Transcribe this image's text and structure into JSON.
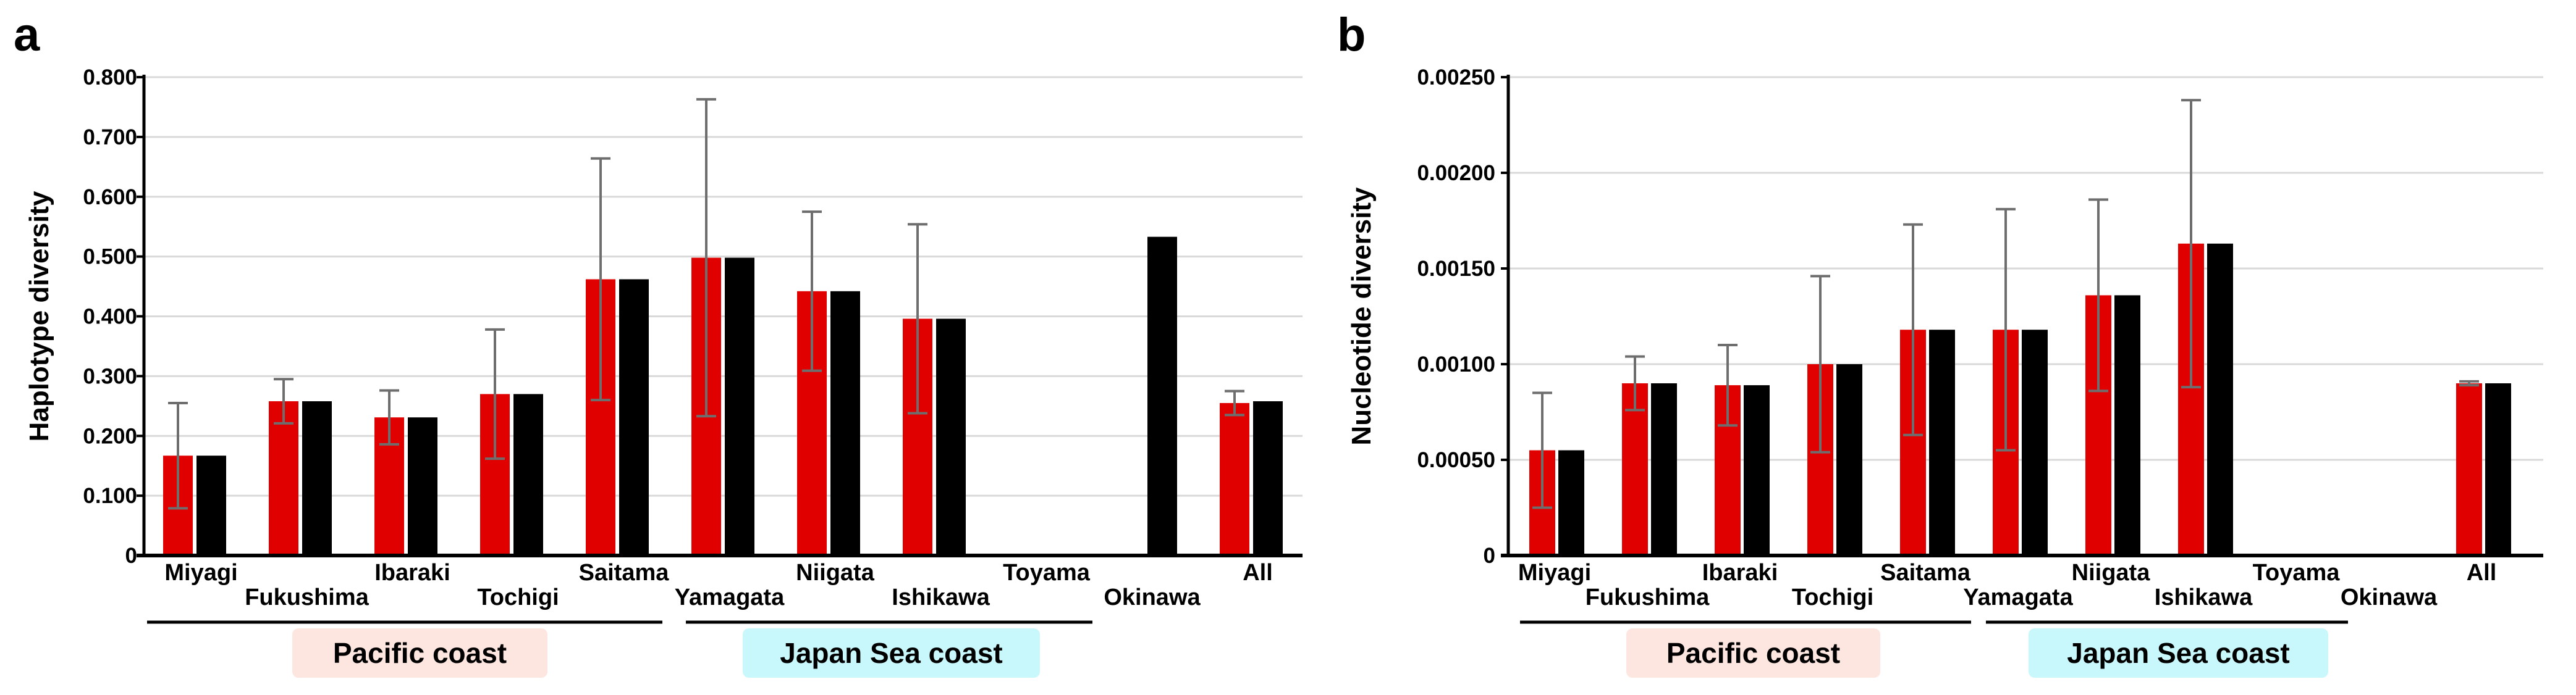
{
  "colors": {
    "red": "#e00000",
    "black": "#000000",
    "grid": "#d9d9d9",
    "error_bar": "#6e6e6e",
    "pacific_bg": "#fde6df",
    "japan_sea_bg": "#c8f8fb"
  },
  "chart_data": [
    {
      "type": "bar",
      "panel": "a",
      "title": "",
      "xlabel": "",
      "ylabel": "Haplotype diversity",
      "ylim": [
        0,
        0.8
      ],
      "y_ticks": [
        0,
        0.1,
        0.2,
        0.3,
        0.4,
        0.5,
        0.6,
        0.7,
        0.8
      ],
      "y_tick_labels": [
        "0",
        "0.100",
        "0.200",
        "0.300",
        "0.400",
        "0.500",
        "0.600",
        "0.700",
        "0.800"
      ],
      "grid": true,
      "categories": [
        "Miyagi",
        "Fukushima",
        "Ibaraki",
        "Tochigi",
        "Saitama",
        "Yamagata",
        "Niigata",
        "Ishikawa",
        "Toyama",
        "Okinawa",
        "All"
      ],
      "series": [
        {
          "name": "red",
          "values": [
            0.167,
            0.258,
            0.231,
            0.27,
            0.462,
            0.498,
            0.442,
            0.396,
            null,
            null,
            0.255
          ],
          "error": [
            0.088,
            0.037,
            0.045,
            0.108,
            0.202,
            0.265,
            0.133,
            0.158,
            null,
            null,
            0.02
          ]
        },
        {
          "name": "black",
          "values": [
            0.167,
            0.258,
            0.231,
            0.27,
            0.462,
            0.498,
            0.442,
            0.396,
            null,
            0.533,
            0.258
          ]
        }
      ],
      "groups": [
        {
          "label": "Pacific coast",
          "from": 0,
          "to": 4
        },
        {
          "label": "Japan Sea coast",
          "from": 5,
          "to": 8
        }
      ]
    },
    {
      "type": "bar",
      "panel": "b",
      "title": "",
      "xlabel": "",
      "ylabel": "Nucleotide diversity",
      "ylim": [
        0,
        0.0025
      ],
      "y_ticks": [
        0,
        0.0005,
        0.001,
        0.0015,
        0.002,
        0.0025
      ],
      "y_tick_labels": [
        "0",
        "0.00050",
        "0.00100",
        "0.00150",
        "0.00200",
        "0.00250"
      ],
      "grid": true,
      "categories": [
        "Miyagi",
        "Fukushima",
        "Ibaraki",
        "Tochigi",
        "Saitama",
        "Yamagata",
        "Niigata",
        "Ishikawa",
        "Toyama",
        "Okinawa",
        "All"
      ],
      "series": [
        {
          "name": "red",
          "values": [
            0.00055,
            0.0009,
            0.00089,
            0.001,
            0.00118,
            0.00118,
            0.00136,
            0.00163,
            null,
            null,
            0.0009
          ],
          "error": [
            0.0003,
            0.00014,
            0.00021,
            0.00046,
            0.00055,
            0.00063,
            0.0005,
            0.00075,
            null,
            null,
            1e-05
          ]
        },
        {
          "name": "black",
          "values": [
            0.00055,
            0.0009,
            0.00089,
            0.001,
            0.00118,
            0.00118,
            0.00136,
            0.00163,
            null,
            null,
            0.0009
          ]
        }
      ],
      "groups": [
        {
          "label": "Pacific coast",
          "from": 0,
          "to": 4
        },
        {
          "label": "Japan Sea coast",
          "from": 5,
          "to": 8
        }
      ]
    }
  ]
}
